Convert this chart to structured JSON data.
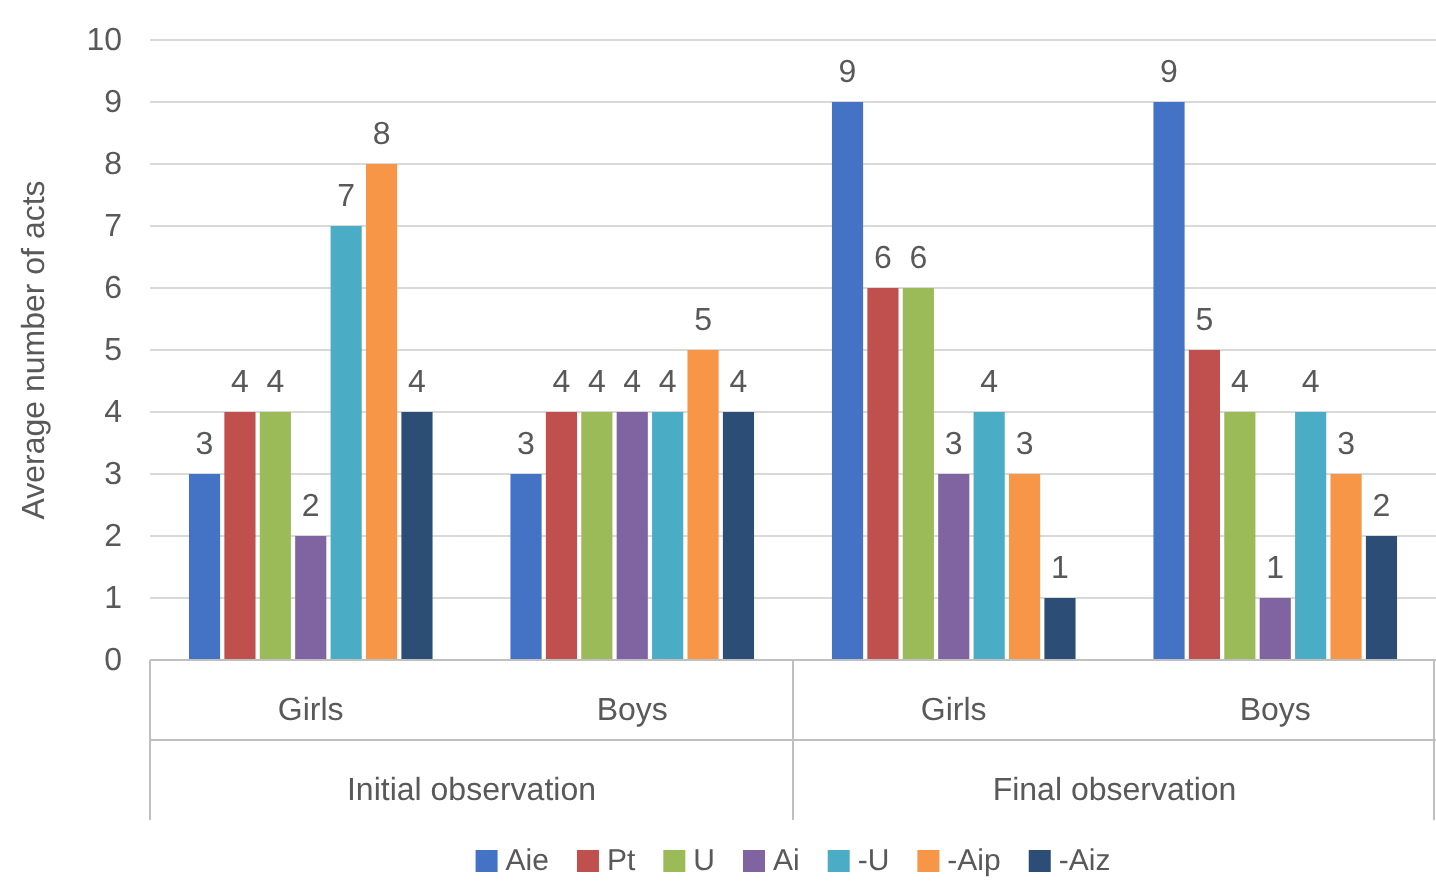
{
  "chart_data": {
    "type": "bar",
    "ylabel": "Average number of acts",
    "categories": [
      "Girls",
      "Boys",
      "Girls",
      "Boys"
    ],
    "annotations": [
      "Initial observation",
      "Final observation"
    ],
    "series": [
      {
        "name": "Aie",
        "color": "#4472c4",
        "values": [
          3,
          3,
          9,
          9
        ]
      },
      {
        "name": "Pt",
        "color": "#c0504d",
        "values": [
          4,
          4,
          6,
          5
        ]
      },
      {
        "name": "U",
        "color": "#9bbb59",
        "values": [
          4,
          4,
          6,
          4
        ]
      },
      {
        "name": "Ai",
        "color": "#8064a2",
        "values": [
          2,
          4,
          3,
          1
        ]
      },
      {
        "name": "-U",
        "color": "#4bacc6",
        "values": [
          7,
          4,
          4,
          4
        ]
      },
      {
        "name": "-Aip",
        "color": "#f79646",
        "values": [
          8,
          5,
          3,
          3
        ]
      },
      {
        "name": "-Aiz",
        "color": "#2c4d75",
        "values": [
          4,
          4,
          1,
          2
        ]
      }
    ],
    "ylim": [
      0,
      10
    ],
    "yticks": [
      0,
      1,
      2,
      3,
      4,
      5,
      6,
      7,
      8,
      9,
      10
    ],
    "grid": "y",
    "legend": "bottom",
    "data_labels": true
  }
}
